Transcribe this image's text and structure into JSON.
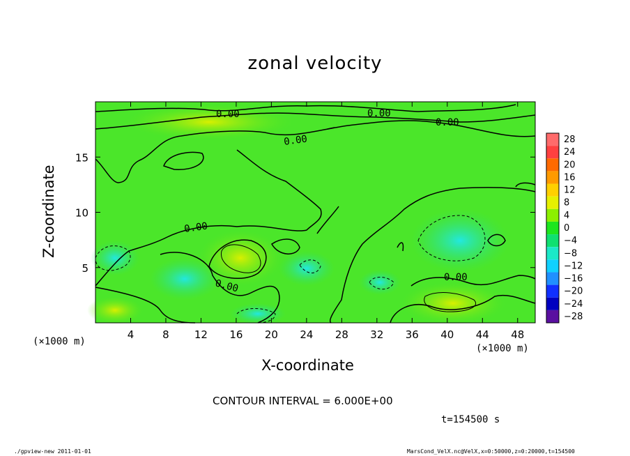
{
  "chart_data": {
    "type": "contour",
    "title": "zonal velocity",
    "xlabel": "X-coordinate",
    "ylabel": "Z-coordinate",
    "x_unit_left": "(×1000 m)",
    "x_unit_right": "(×1000 m)",
    "xlim": [
      0,
      50
    ],
    "ylim": [
      0,
      20
    ],
    "x_ticks": [
      "4",
      "8",
      "12",
      "16",
      "20",
      "24",
      "28",
      "32",
      "36",
      "40",
      "44",
      "48"
    ],
    "y_ticks": [
      "5",
      "10",
      "15"
    ],
    "contour_labels": [
      "0.00",
      "0.00",
      "0.00",
      "0.00",
      "0.00",
      "0.00",
      "0.00"
    ],
    "colorbar": {
      "levels": [
        "28",
        "24",
        "20",
        "16",
        "12",
        "8",
        "4",
        "0",
        "-4",
        "-8",
        "-12",
        "-16",
        "-20",
        "-24",
        "-28"
      ],
      "colors": [
        "#ff6b6b",
        "#ff4040",
        "#ff6a00",
        "#ff9a00",
        "#ffd000",
        "#e6f000",
        "#8cf000",
        "#1ee61e",
        "#10e070",
        "#1ce8c8",
        "#10d0ff",
        "#2090ff",
        "#1030ff",
        "#0000c0",
        "#5a10a0"
      ]
    },
    "contour_interval_text": "CONTOUR INTERVAL = 6.000E+00",
    "time_text": "t=154500 s",
    "footer_left": "./gpview-new   2011-01-01",
    "footer_right": "MarsCond_VelX.nc@VelX,x=0:50000,z=0:20000,t=154500"
  }
}
